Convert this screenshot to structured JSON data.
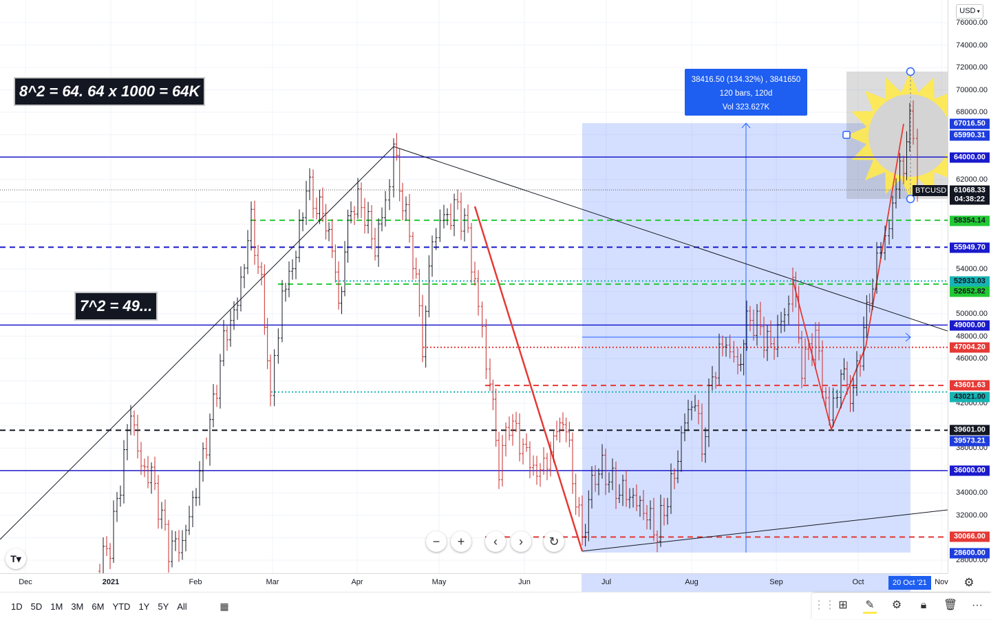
{
  "currency_label": "USD",
  "price_ticks": [
    "76000.00",
    "74000.00",
    "72000.00",
    "70000.00",
    "68000.00",
    "62000.00",
    "54000.00",
    "50000.00",
    "48000.00",
    "46000.00",
    "42000.00",
    "38000.00",
    "34000.00",
    "32000.00",
    "28000.00"
  ],
  "price_tags": [
    {
      "label": "67016.50",
      "bg": "#1e3ddc",
      "fg": "#ffffff"
    },
    {
      "label": "65990.31",
      "bg": "#1e3ddc",
      "fg": "#ffffff"
    },
    {
      "label": "64000.00",
      "bg": "#1a1acc",
      "fg": "#ffffff"
    },
    {
      "label": "61068.33",
      "bg": "#131722",
      "fg": "#ffffff"
    },
    {
      "label": "04:38:22",
      "bg": "#131722",
      "fg": "#ffffff"
    },
    {
      "label": "58354.14",
      "bg": "#22c933",
      "fg": "#131722"
    },
    {
      "label": "55949.70",
      "bg": "#1a1acc",
      "fg": "#ffffff"
    },
    {
      "label": "52933.03",
      "bg": "#17b4b4",
      "fg": "#131722"
    },
    {
      "label": "52652.82",
      "bg": "#22c933",
      "fg": "#131722"
    },
    {
      "label": "49000.00",
      "bg": "#1a1acc",
      "fg": "#ffffff"
    },
    {
      "label": "47004.20",
      "bg": "#e53935",
      "fg": "#ffffff"
    },
    {
      "label": "43601.63",
      "bg": "#e53935",
      "fg": "#ffffff"
    },
    {
      "label": "43021.00",
      "bg": "#17b4b4",
      "fg": "#131722"
    },
    {
      "label": "39601.00",
      "bg": "#131722",
      "fg": "#ffffff"
    },
    {
      "label": "39573.21",
      "bg": "#1e3ddc",
      "fg": "#ffffff"
    },
    {
      "label": "36000.00",
      "bg": "#1a1acc",
      "fg": "#ffffff"
    },
    {
      "label": "30066.00",
      "bg": "#e53935",
      "fg": "#ffffff"
    },
    {
      "label": "28600.00",
      "bg": "#1e3ddc",
      "fg": "#ffffff"
    }
  ],
  "symbol_label": "BTCUSD",
  "time_labels": [
    "Dec",
    "2021",
    "Feb",
    "Mar",
    "Apr",
    "May",
    "Jun",
    "Jul",
    "Aug",
    "Sep",
    "Oct",
    "Nov"
  ],
  "current_date_label": "20 Oct '21",
  "annotations": {
    "top": "8^2 = 64. 64 x 1000 = 64K",
    "middle": "7^2 = 49..."
  },
  "measure_box": {
    "line1": "38416.50 (134.32%) , 3841650",
    "line2": "120 bars, 120d",
    "line3": "Vol 323.627K"
  },
  "timeframes": [
    "1D",
    "5D",
    "1M",
    "3M",
    "6M",
    "YTD",
    "1Y",
    "5Y",
    "All"
  ],
  "colors": {
    "accent_blue": "#1a1acc",
    "range_fill": "rgba(102,140,255,0.28)",
    "red_line": "#e53935",
    "green_dash": "#22c933",
    "teal_dot": "#17b4b4",
    "sun_yellow": "#ffe94d"
  },
  "icons": {
    "tv_logo": "tradingview-logo-icon",
    "zoom_out": "minus-icon",
    "zoom_in": "plus-icon",
    "scroll_left": "chevron-left-icon",
    "scroll_right": "chevron-right-icon",
    "reset": "reset-icon",
    "date_range": "calendar-icon",
    "settings": "gear-icon"
  }
}
